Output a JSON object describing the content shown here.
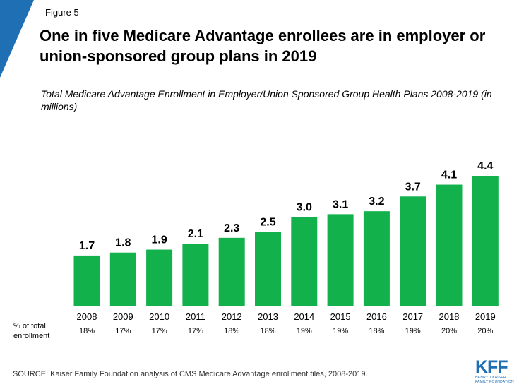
{
  "figure_label": "Figure 5",
  "title": "One in five Medicare Advantage enrollees are in employer or union-sponsored group plans in 2019",
  "subtitle": "Total Medicare Advantage Enrollment in Employer/Union Sponsored Group Health Plans 2008-2019 (in millions)",
  "pct_caption": "% of total enrollment",
  "source": "SOURCE: Kaiser Family Foundation analysis of CMS Medicare Advantage enrollment files, 2008-2019.",
  "logo": {
    "text": "KFF",
    "subtext": "HENRY J KAISER FAMILY FOUNDATION"
  },
  "colors": {
    "bar": "#12b14b",
    "accent": "#1f6fb5"
  },
  "chart_data": {
    "type": "bar",
    "categories": [
      "2008",
      "2009",
      "2010",
      "2011",
      "2012",
      "2013",
      "2014",
      "2015",
      "2016",
      "2017",
      "2018",
      "2019"
    ],
    "values": [
      1.7,
      1.8,
      1.9,
      2.1,
      2.3,
      2.5,
      3.0,
      3.1,
      3.2,
      3.7,
      4.1,
      4.4
    ],
    "value_labels": [
      "1.7",
      "1.8",
      "1.9",
      "2.1",
      "2.3",
      "2.5",
      "3.0",
      "3.1",
      "3.2",
      "3.7",
      "4.1",
      "4.4"
    ],
    "pct_of_total": [
      "18%",
      "17%",
      "17%",
      "17%",
      "18%",
      "18%",
      "19%",
      "19%",
      "18%",
      "19%",
      "20%",
      "20%"
    ],
    "title": "Total Medicare Advantage Enrollment in Employer/Union Sponsored Group Health Plans 2008-2019 (in millions)",
    "xlabel": "",
    "ylabel": "",
    "ylim": [
      0,
      4.4
    ],
    "grid": false,
    "legend": "none"
  }
}
